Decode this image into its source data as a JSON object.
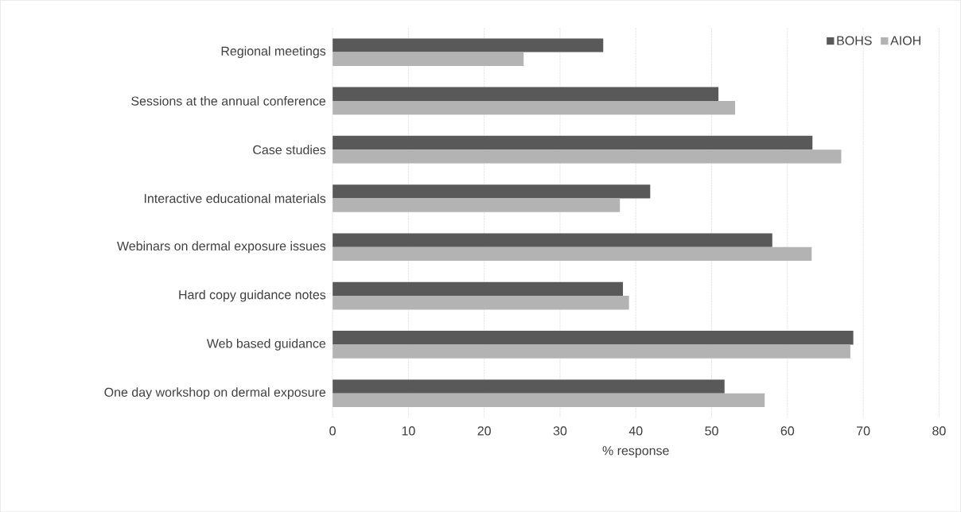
{
  "chart_data": {
    "type": "bar",
    "orientation": "horizontal",
    "xlabel": "% response",
    "categories": [
      "Regional meetings",
      "Sessions at the annual conference",
      "Case studies",
      "Interactive educational materials",
      "Webinars on dermal exposure issues",
      "Hard copy guidance notes",
      "Web based guidance",
      "One day workshop on dermal exposure"
    ],
    "series": [
      {
        "name": "BOHS",
        "color": "#595959",
        "values": [
          35.7,
          50.9,
          63.3,
          41.9,
          58.0,
          38.3,
          68.7,
          51.7
        ]
      },
      {
        "name": "AIOH",
        "color": "#b3b3b3",
        "values": [
          25.2,
          53.1,
          67.1,
          37.9,
          63.2,
          39.1,
          68.3,
          57.0
        ]
      }
    ],
    "xlim": [
      0,
      80
    ],
    "xticks": [
      0,
      10,
      20,
      30,
      40,
      50,
      60,
      70,
      80
    ],
    "grid": "x",
    "legend": "top right"
  }
}
